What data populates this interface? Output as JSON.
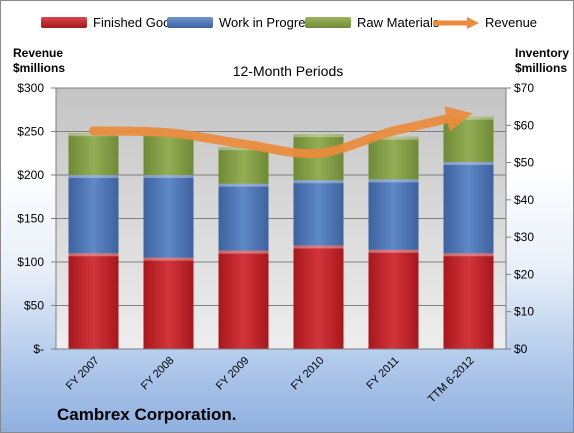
{
  "legend": [
    {
      "label": "Finished Goods",
      "color": "#c0242a"
    },
    {
      "label": "Work in Progress",
      "color": "#4f79b8"
    },
    {
      "label": "Raw Materials",
      "color": "#86a04a"
    },
    {
      "label": "Revenue",
      "color": "#ec8b3c"
    }
  ],
  "left_axis_title_1": "Revenue",
  "left_axis_title_2": "$millions",
  "right_axis_title_1": "Inventory",
  "right_axis_title_2": "$millions",
  "subtitle": "12-Month Periods",
  "company": "Cambrex Corporation.",
  "chart_data": {
    "type": "bar",
    "stacked": true,
    "categories": [
      "FY 2007",
      "FY 2008",
      "FY 2009",
      "FY 2010",
      "FY 2011",
      "TTM 6-2012"
    ],
    "series": [
      {
        "name": "Finished Goods",
        "axis": "left",
        "values": [
          110,
          105,
          113,
          119,
          114,
          110
        ],
        "color": "#c0242a"
      },
      {
        "name": "Work in Progress",
        "axis": "left",
        "values": [
          90,
          95,
          77,
          75,
          81,
          105
        ],
        "color": "#4f79b8"
      },
      {
        "name": "Raw Materials",
        "axis": "left",
        "values": [
          48,
          48,
          42,
          53,
          49,
          52
        ],
        "color": "#86a04a"
      },
      {
        "name": "Revenue",
        "type": "line",
        "axis": "right",
        "values": [
          58.5,
          58,
          55,
          52.5,
          58.5,
          63
        ],
        "color": "#ec8b3c"
      }
    ],
    "y_left": {
      "min": 0,
      "max": 300,
      "step": 50,
      "tick_labels": [
        "$-",
        "$50",
        "$100",
        "$150",
        "$200",
        "$250",
        "$300"
      ]
    },
    "y_right": {
      "min": 0,
      "max": 70,
      "step": 10,
      "tick_labels": [
        "$0",
        "$10",
        "$20",
        "$30",
        "$40",
        "$50",
        "$60",
        "$70"
      ]
    },
    "grid": true
  }
}
